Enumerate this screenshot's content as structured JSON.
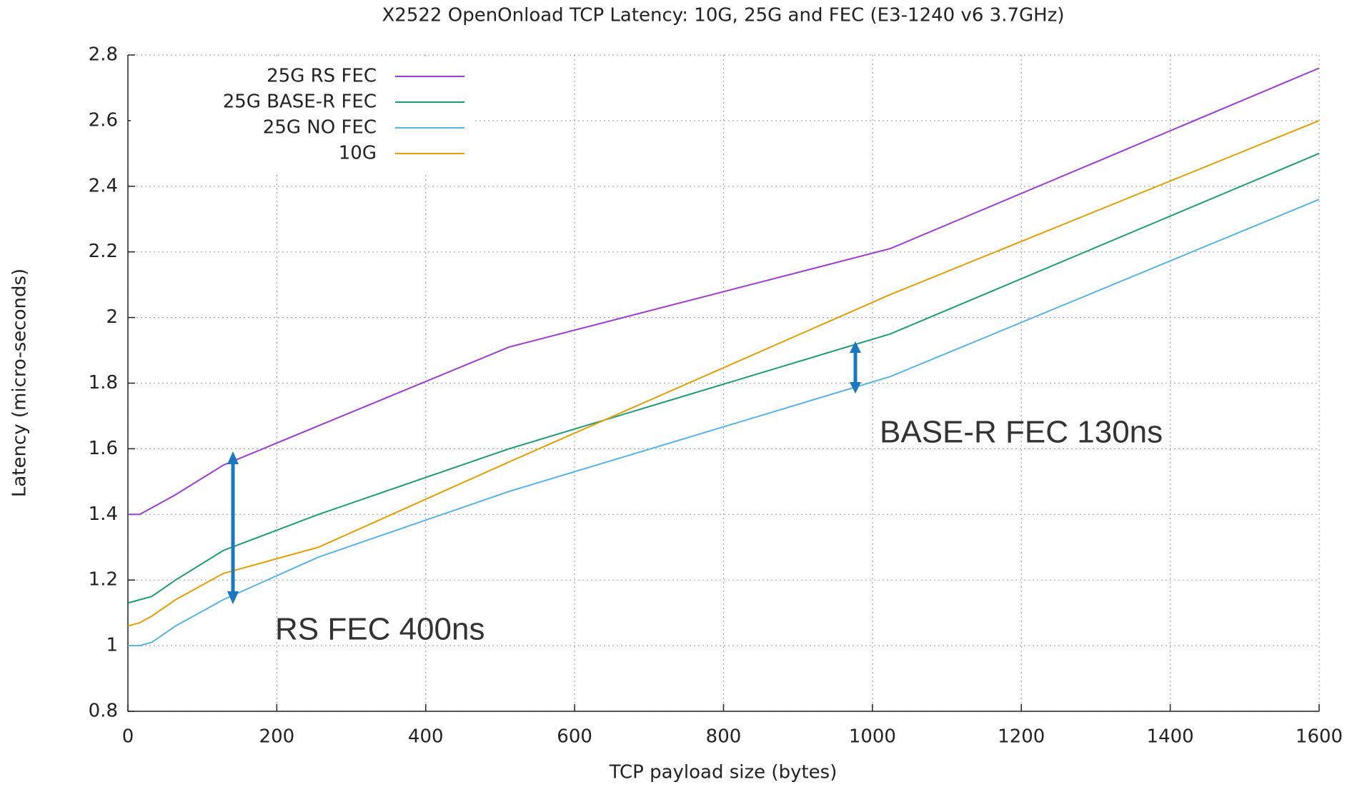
{
  "chart_data": {
    "type": "line",
    "title": "X2522 OpenOnload TCP Latency: 10G, 25G and FEC  (E3-1240 v6 3.7GHz)",
    "x_label": "TCP payload size (bytes)",
    "y_label": "Latency (micro-seconds)",
    "x": [
      0,
      16,
      32,
      64,
      128,
      256,
      512,
      1024,
      1600
    ],
    "series": [
      {
        "name": "25G RS FEC",
        "color": "#a03ad8",
        "values": [
          1.4,
          1.4,
          1.42,
          1.46,
          1.55,
          1.67,
          1.91,
          2.21,
          2.76
        ]
      },
      {
        "name": "25G BASE-R FEC",
        "color": "#1a9e78",
        "values": [
          1.13,
          1.14,
          1.15,
          1.2,
          1.29,
          1.4,
          1.6,
          1.95,
          2.5
        ]
      },
      {
        "name": "25G NO FEC",
        "color": "#56b4e9",
        "values": [
          1.0,
          1.0,
          1.01,
          1.06,
          1.14,
          1.27,
          1.47,
          1.82,
          2.36
        ]
      },
      {
        "name": "10G",
        "color": "#e69f00",
        "values": [
          1.06,
          1.07,
          1.09,
          1.14,
          1.22,
          1.3,
          1.56,
          2.07,
          2.6
        ]
      }
    ],
    "xlim": [
      0,
      1600
    ],
    "xticks": [
      0,
      200,
      400,
      600,
      800,
      1000,
      1200,
      1400,
      1600
    ],
    "ylim": [
      0.8,
      2.8
    ],
    "yticks": [
      0.8,
      1,
      1.2,
      1.4,
      1.6,
      1.8,
      2,
      2.2,
      2.4,
      2.6,
      2.8
    ],
    "grid": true,
    "legend": "top-left",
    "annotations": [
      "RS FEC  400ns",
      "BASE-R FEC  130ns"
    ]
  }
}
